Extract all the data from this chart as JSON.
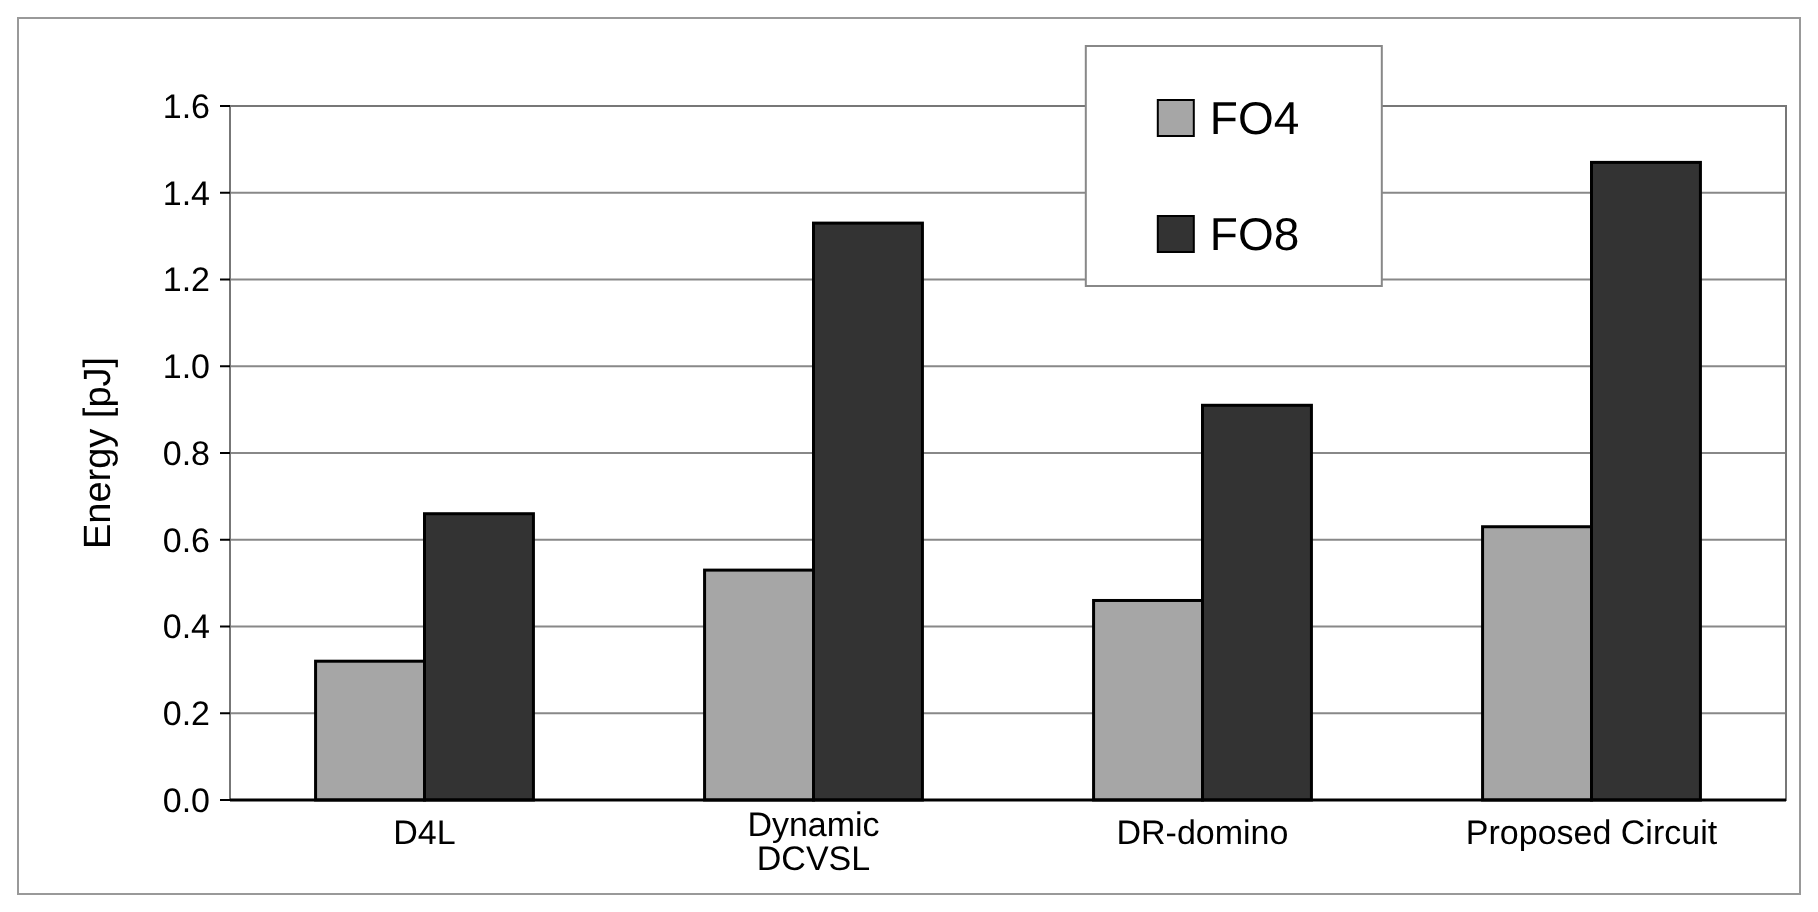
{
  "chart_data": {
    "type": "bar",
    "ylabel": "Energy [pJ]",
    "categories": [
      "D4L",
      "Dynamic\nDCVSL",
      "DR-domino",
      "Proposed Circuit"
    ],
    "series": [
      {
        "name": "FO4",
        "color": "#a6a6a6",
        "values": [
          0.32,
          0.53,
          0.46,
          0.63
        ]
      },
      {
        "name": "FO8",
        "color": "#333333",
        "values": [
          0.66,
          1.33,
          0.91,
          1.47
        ]
      }
    ],
    "ylim": [
      0,
      1.6
    ],
    "yticks": [
      {
        "value": 0,
        "label": "0.0"
      },
      {
        "value": 0.2,
        "label": "0.2"
      },
      {
        "value": 0.4,
        "label": "0.4"
      },
      {
        "value": 0.6,
        "label": "0.6"
      },
      {
        "value": 0.8,
        "label": "0.8"
      },
      {
        "value": 1,
        "label": "1.0"
      },
      {
        "value": 1.2,
        "label": "1.2"
      },
      {
        "value": 1.4,
        "label": "1.4"
      },
      {
        "value": 1.6,
        "label": "1.6"
      }
    ],
    "grid": "y",
    "legend": "top"
  }
}
